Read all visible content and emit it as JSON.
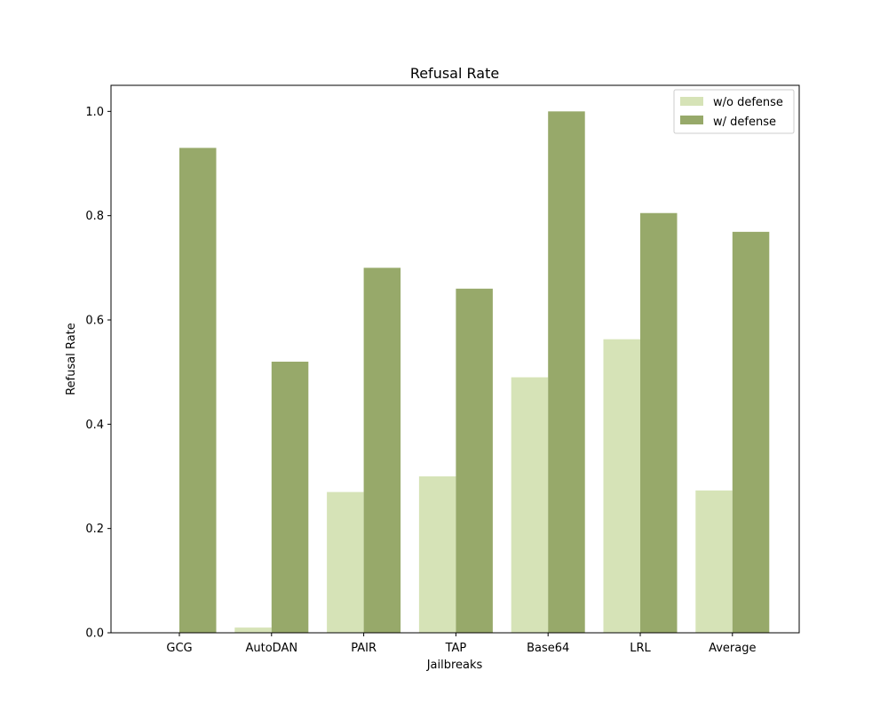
{
  "chart_data": {
    "type": "bar",
    "title": "Refusal Rate",
    "xlabel": "Jailbreaks",
    "ylabel": "Refusal Rate",
    "categories": [
      "GCG",
      "AutoDAN",
      "PAIR",
      "TAP",
      "Base64",
      "LRL",
      "Average"
    ],
    "series": [
      {
        "name": "w/o defense",
        "color": "#d6e3b7",
        "values": [
          0.0,
          0.01,
          0.27,
          0.3,
          0.49,
          0.563,
          0.273
        ]
      },
      {
        "name": "w/ defense",
        "color": "#97a96a",
        "values": [
          0.93,
          0.52,
          0.7,
          0.66,
          1.0,
          0.805,
          0.769
        ]
      }
    ],
    "ylim": [
      0,
      1.05
    ],
    "yticks": [
      "0.0",
      "0.2",
      "0.4",
      "0.6",
      "0.8",
      "1.0"
    ],
    "legend_position": "top-right",
    "grid": false
  }
}
